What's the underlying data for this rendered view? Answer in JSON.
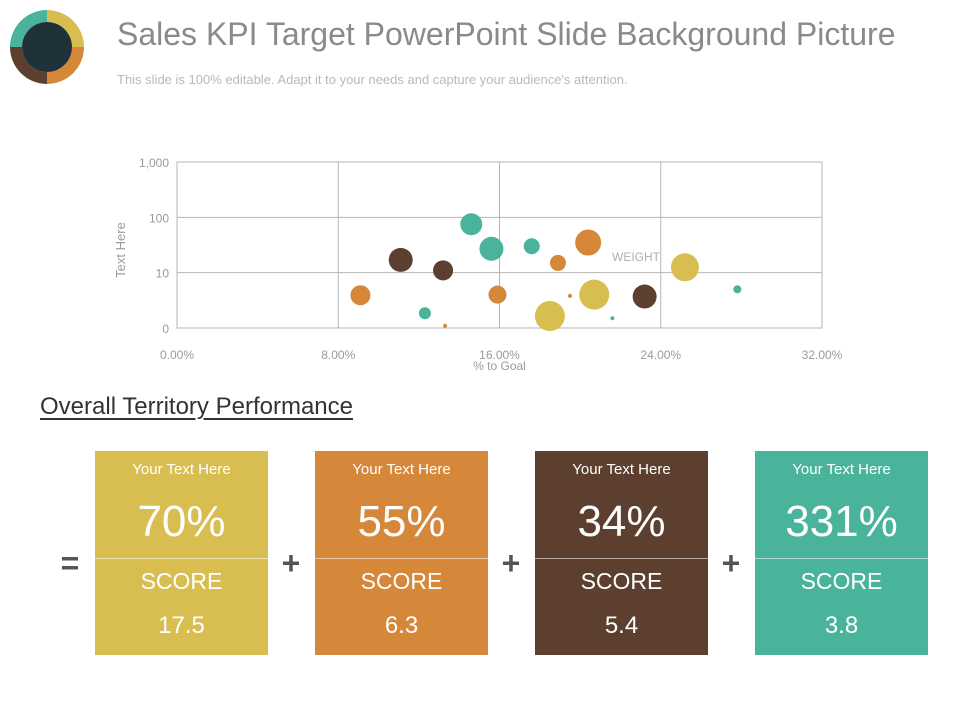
{
  "header": {
    "title": "Sales KPI Target PowerPoint Slide Background Picture",
    "subtitle": "This slide is 100% editable. Adapt it to your needs and capture your audience's attention."
  },
  "colors": {
    "yellow": "#D8BE50",
    "orange": "#D5873A",
    "brown": "#5C3F2E",
    "teal": "#49B39C",
    "logo_center": "#1E3238"
  },
  "icons": {
    "logo": "ring-logo-icon"
  },
  "chart_data": {
    "type": "scatter",
    "xlabel": "% to Goal",
    "ylabel": "Text Here",
    "x_ticks": [
      "0.00%",
      "8.00%",
      "16.00%",
      "24.00%",
      "32.00%"
    ],
    "y_ticks": [
      "0",
      "10",
      "100",
      "1,000"
    ],
    "xlim": [
      0,
      32
    ],
    "y_scale": "log",
    "annotation": "WEIGHT",
    "grid": true,
    "points": [
      {
        "x": 9.1,
        "y": 3.9,
        "size": 10,
        "color": "orange"
      },
      {
        "x": 11.1,
        "y": 17.0,
        "size": 12,
        "color": "brown"
      },
      {
        "x": 12.3,
        "y": 1.85,
        "size": 6,
        "color": "teal"
      },
      {
        "x": 13.3,
        "y": 1.1,
        "size": 2,
        "color": "orange"
      },
      {
        "x": 13.2,
        "y": 11.0,
        "size": 10,
        "color": "brown"
      },
      {
        "x": 14.6,
        "y": 75.0,
        "size": 11,
        "color": "teal"
      },
      {
        "x": 15.6,
        "y": 27.0,
        "size": 12,
        "color": "teal"
      },
      {
        "x": 15.9,
        "y": 4.0,
        "size": 9,
        "color": "orange"
      },
      {
        "x": 17.6,
        "y": 30.0,
        "size": 8,
        "color": "teal"
      },
      {
        "x": 18.5,
        "y": 1.65,
        "size": 15,
        "color": "yellow"
      },
      {
        "x": 18.9,
        "y": 15.0,
        "size": 8,
        "color": "orange"
      },
      {
        "x": 19.5,
        "y": 3.8,
        "size": 2,
        "color": "orange"
      },
      {
        "x": 20.4,
        "y": 35.0,
        "size": 13,
        "color": "orange"
      },
      {
        "x": 20.7,
        "y": 4.0,
        "size": 15,
        "color": "yellow"
      },
      {
        "x": 21.6,
        "y": 1.5,
        "size": 2,
        "color": "teal"
      },
      {
        "x": 23.2,
        "y": 3.7,
        "size": 12,
        "color": "brown"
      },
      {
        "x": 25.2,
        "y": 12.5,
        "size": 14,
        "color": "yellow"
      },
      {
        "x": 27.8,
        "y": 5.0,
        "size": 4,
        "color": "teal"
      }
    ]
  },
  "section": {
    "title": "Overall Territory Performance"
  },
  "operators": {
    "equals": "=",
    "plus": "+"
  },
  "cards": [
    {
      "caption": "Your Text Here",
      "percent": "70%",
      "score_label": "SCORE",
      "score": "17.5",
      "color": "#D8BE50"
    },
    {
      "caption": "Your Text Here",
      "percent": "55%",
      "score_label": "SCORE",
      "score": "6.3",
      "color": "#D5873A"
    },
    {
      "caption": "Your Text Here",
      "percent": "34%",
      "score_label": "SCORE",
      "score": "5.4",
      "color": "#5C3F2E"
    },
    {
      "caption": "Your Text Here",
      "percent": "331%",
      "score_label": "SCORE",
      "score": "3.8",
      "color": "#49B39C"
    }
  ]
}
